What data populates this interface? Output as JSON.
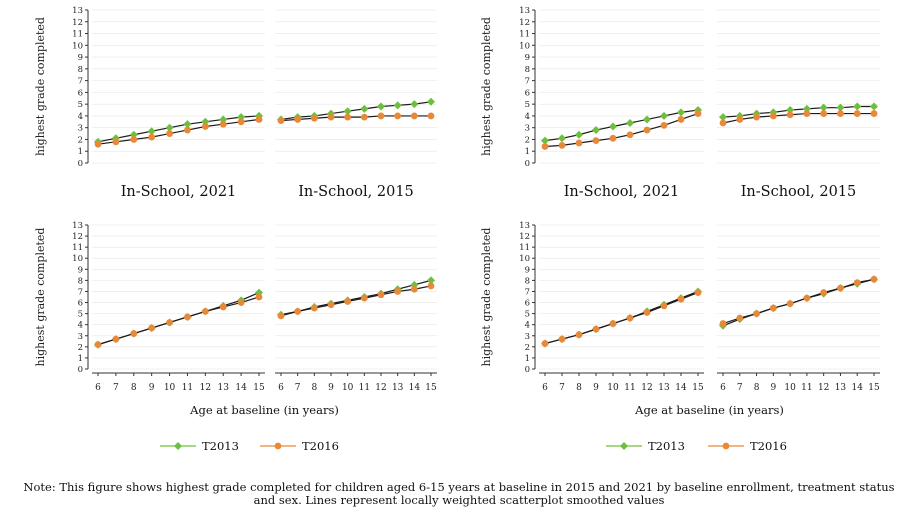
{
  "chart_data": [
    {
      "type": "line",
      "ylabel": "highest grade completed",
      "xlabel": "Age at baseline (in years)",
      "x": [
        6,
        7,
        8,
        9,
        10,
        11,
        12,
        13,
        14,
        15
      ],
      "yticks": [
        0,
        1,
        2,
        3,
        4,
        5,
        6,
        7,
        8,
        9,
        10,
        11,
        12,
        13
      ],
      "ylim": [
        0,
        13
      ],
      "legend": [
        "T2013",
        "T2016"
      ],
      "legend_position": "bottom",
      "panels": [
        {
          "title": "",
          "series": [
            {
              "name": "T2013",
              "values": [
                1.8,
                2.1,
                2.4,
                2.7,
                3.0,
                3.3,
                3.5,
                3.7,
                3.9,
                4.0
              ]
            },
            {
              "name": "T2016",
              "values": [
                1.6,
                1.8,
                2.0,
                2.2,
                2.5,
                2.8,
                3.1,
                3.3,
                3.5,
                3.7
              ]
            }
          ]
        },
        {
          "title": "In-School, 2015",
          "series": [
            {
              "name": "T2013",
              "values": [
                3.7,
                3.9,
                4.0,
                4.2,
                4.4,
                4.6,
                4.8,
                4.9,
                5.0,
                5.2
              ]
            },
            {
              "name": "T2016",
              "values": [
                3.6,
                3.7,
                3.8,
                3.9,
                3.9,
                3.9,
                4.0,
                4.0,
                4.0,
                4.0
              ]
            }
          ]
        },
        {
          "title": "In-School, 2021",
          "series": [
            {
              "name": "T2013",
              "values": [
                2.2,
                2.7,
                3.2,
                3.7,
                4.2,
                4.7,
                5.2,
                5.7,
                6.2,
                6.9
              ]
            },
            {
              "name": "T2016",
              "values": [
                2.2,
                2.7,
                3.2,
                3.7,
                4.2,
                4.7,
                5.2,
                5.6,
                6.0,
                6.5
              ]
            }
          ]
        },
        {
          "title": "",
          "series": [
            {
              "name": "T2013",
              "values": [
                4.9,
                5.2,
                5.6,
                5.9,
                6.2,
                6.5,
                6.8,
                7.2,
                7.6,
                8.0
              ]
            },
            {
              "name": "T2016",
              "values": [
                4.8,
                5.2,
                5.5,
                5.8,
                6.1,
                6.4,
                6.7,
                7.0,
                7.2,
                7.5
              ]
            }
          ]
        }
      ]
    },
    {
      "type": "line",
      "ylabel": "highest grade completed",
      "xlabel": "Age at baseline (in years)",
      "x": [
        6,
        7,
        8,
        9,
        10,
        11,
        12,
        13,
        14,
        15
      ],
      "yticks": [
        0,
        1,
        2,
        3,
        4,
        5,
        6,
        7,
        8,
        9,
        10,
        11,
        12,
        13
      ],
      "ylim": [
        0,
        13
      ],
      "legend": [
        "T2013",
        "T2016"
      ],
      "legend_position": "bottom",
      "panels": [
        {
          "title": "",
          "series": [
            {
              "name": "T2013",
              "values": [
                1.9,
                2.1,
                2.4,
                2.8,
                3.1,
                3.4,
                3.7,
                4.0,
                4.3,
                4.5
              ]
            },
            {
              "name": "T2016",
              "values": [
                1.4,
                1.5,
                1.7,
                1.9,
                2.1,
                2.4,
                2.8,
                3.2,
                3.7,
                4.2
              ]
            }
          ]
        },
        {
          "title": "In-School, 2015",
          "series": [
            {
              "name": "T2013",
              "values": [
                3.9,
                4.0,
                4.2,
                4.3,
                4.5,
                4.6,
                4.7,
                4.7,
                4.8,
                4.8
              ]
            },
            {
              "name": "T2016",
              "values": [
                3.4,
                3.7,
                3.9,
                4.0,
                4.1,
                4.2,
                4.2,
                4.2,
                4.2,
                4.2
              ]
            }
          ]
        },
        {
          "title": "In-School, 2021",
          "series": [
            {
              "name": "T2013",
              "values": [
                2.3,
                2.7,
                3.1,
                3.6,
                4.1,
                4.6,
                5.2,
                5.8,
                6.4,
                7.0
              ]
            },
            {
              "name": "T2016",
              "values": [
                2.3,
                2.7,
                3.1,
                3.6,
                4.1,
                4.6,
                5.1,
                5.7,
                6.3,
                6.9
              ]
            }
          ]
        },
        {
          "title": "",
          "series": [
            {
              "name": "T2013",
              "values": [
                3.9,
                4.5,
                5.0,
                5.5,
                5.9,
                6.4,
                6.8,
                7.3,
                7.7,
                8.1
              ]
            },
            {
              "name": "T2016",
              "values": [
                4.1,
                4.6,
                5.0,
                5.5,
                5.9,
                6.4,
                6.9,
                7.3,
                7.8,
                8.1
              ]
            }
          ]
        }
      ]
    }
  ],
  "colors": {
    "T2013": "#6fbf3f",
    "T2016": "#e8893a",
    "axis": "#333333",
    "grid": "#e6e6e6"
  },
  "note": {
    "line1": "Note: This figure shows highest grade completed for children aged 6-15 years at baseline in 2015 and 2021 by baseline enrollment, treatment status",
    "line2": "and sex. Lines represent locally weighted scatterplot smoothed values"
  }
}
